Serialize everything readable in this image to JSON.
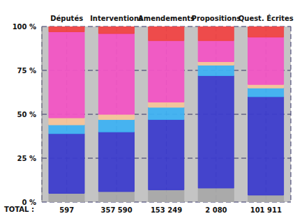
{
  "chart_data": {
    "type": "bar",
    "stacked": true,
    "grid": true,
    "categories": [
      "Députés",
      "Interventions",
      "Amendements",
      "Propositions",
      "Quest. Écrites"
    ],
    "series": [
      {
        "color": "#a9a9a9",
        "values": [
          5,
          6,
          7,
          8,
          4
        ]
      },
      {
        "color": "#3d3dcc",
        "values": [
          34,
          34,
          40,
          64,
          56
        ]
      },
      {
        "color": "#3fb2f2",
        "values": [
          5,
          7,
          7,
          6,
          5
        ]
      },
      {
        "color": "#f6c49a",
        "values": [
          4,
          3,
          3,
          2,
          2
        ]
      },
      {
        "color": "#f255c4",
        "values": [
          49,
          46,
          35,
          12,
          27
        ]
      },
      {
        "color": "#f04444",
        "values": [
          3,
          4,
          8,
          8,
          6
        ]
      }
    ],
    "ylim": [
      0,
      100
    ],
    "yticks": [
      {
        "value": 0,
        "label": "0 %"
      },
      {
        "value": 25,
        "label": "25 %"
      },
      {
        "value": 50,
        "label": "50 %"
      },
      {
        "value": 75,
        "label": "75 %"
      },
      {
        "value": 100,
        "label": "100 %"
      }
    ],
    "total_label": "TOTAL :",
    "totals": [
      {
        "value": 597,
        "label": "597"
      },
      {
        "value": 357590,
        "label": "357 590"
      },
      {
        "value": 153249,
        "label": "153 249"
      },
      {
        "value": 2080,
        "label": "2 080"
      },
      {
        "value": 101911,
        "label": "101 911"
      }
    ]
  }
}
